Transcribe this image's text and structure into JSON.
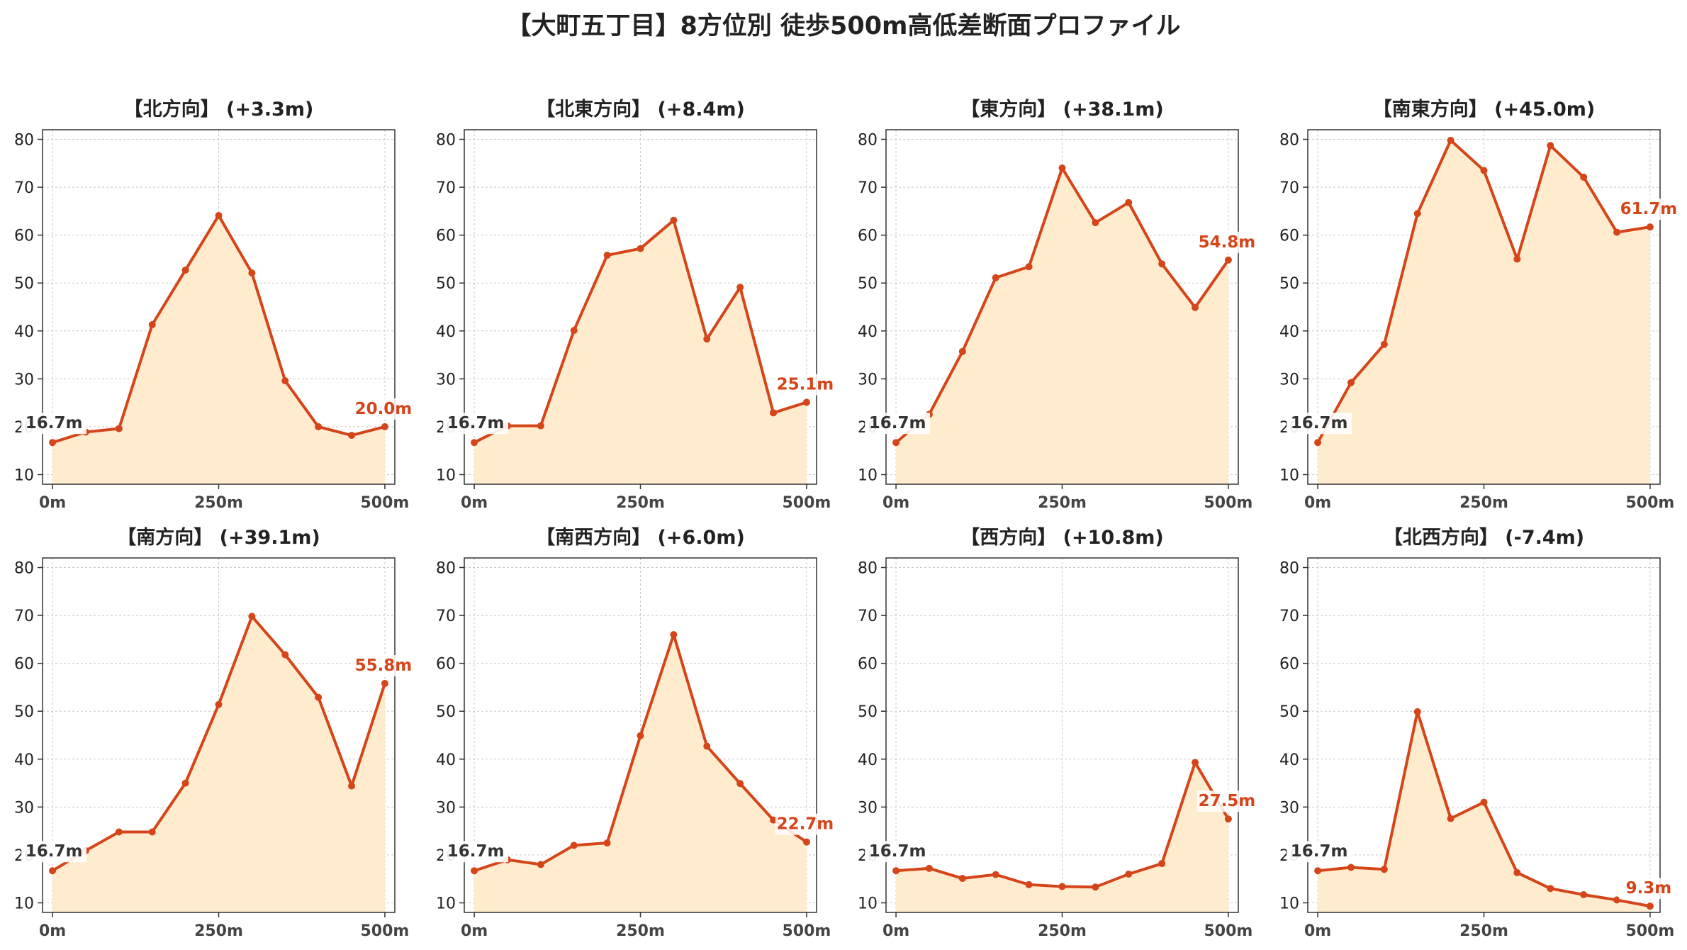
{
  "suptitle": "【大町五丁目】8方位別 徒歩500m高低差断面プロファイル",
  "colors": {
    "line": "#d4451a",
    "fill": "#ffebcd",
    "grid": "#c8c8c8",
    "axis": "#333333",
    "start_label": "#333333",
    "end_label": "#d4451a"
  },
  "chart_data": [
    {
      "type": "area",
      "title": "【北方向】 (+3.3m)",
      "x": [
        0,
        50,
        100,
        150,
        200,
        250,
        300,
        350,
        400,
        450,
        500
      ],
      "y": [
        16.7,
        18.9,
        19.6,
        41.3,
        52.7,
        64.1,
        52.1,
        29.6,
        20.0,
        18.2,
        20.0
      ],
      "xticks": [
        "0m",
        "250m",
        "500m"
      ],
      "yticks": [
        10,
        20,
        30,
        40,
        50,
        60,
        70,
        80
      ],
      "ylim": [
        8,
        82
      ],
      "xlim": [
        -15,
        515
      ],
      "grid": true,
      "start_label": "16.7m",
      "end_label": "20.0m"
    },
    {
      "type": "area",
      "title": "【北東方向】 (+8.4m)",
      "x": [
        0,
        50,
        100,
        150,
        200,
        250,
        300,
        350,
        400,
        450,
        500
      ],
      "y": [
        16.7,
        20.2,
        20.2,
        40.1,
        55.8,
        57.2,
        63.1,
        38.3,
        49.1,
        22.9,
        25.1
      ],
      "xticks": [
        "0m",
        "250m",
        "500m"
      ],
      "yticks": [
        10,
        20,
        30,
        40,
        50,
        60,
        70,
        80
      ],
      "ylim": [
        8,
        82
      ],
      "xlim": [
        -15,
        515
      ],
      "grid": true,
      "start_label": "16.7m",
      "end_label": "25.1m"
    },
    {
      "type": "area",
      "title": "【東方向】 (+38.1m)",
      "x": [
        0,
        50,
        100,
        150,
        200,
        250,
        300,
        350,
        400,
        450,
        500
      ],
      "y": [
        16.7,
        22.6,
        35.7,
        51.1,
        53.4,
        74.0,
        62.6,
        66.8,
        54.0,
        44.9,
        54.8
      ],
      "xticks": [
        "0m",
        "250m",
        "500m"
      ],
      "yticks": [
        10,
        20,
        30,
        40,
        50,
        60,
        70,
        80
      ],
      "ylim": [
        8,
        82
      ],
      "xlim": [
        -15,
        515
      ],
      "grid": true,
      "start_label": "16.7m",
      "end_label": "54.8m"
    },
    {
      "type": "area",
      "title": "【南東方向】 (+45.0m)",
      "x": [
        0,
        50,
        100,
        150,
        200,
        250,
        300,
        350,
        400,
        450,
        500
      ],
      "y": [
        16.7,
        29.2,
        37.2,
        64.5,
        79.8,
        73.5,
        55.0,
        78.7,
        72.1,
        60.6,
        61.7
      ],
      "xticks": [
        "0m",
        "250m",
        "500m"
      ],
      "yticks": [
        10,
        20,
        30,
        40,
        50,
        60,
        70,
        80
      ],
      "ylim": [
        8,
        82
      ],
      "xlim": [
        -15,
        515
      ],
      "grid": true,
      "start_label": "16.7m",
      "end_label": "61.7m"
    },
    {
      "type": "area",
      "title": "【南方向】 (+39.1m)",
      "x": [
        0,
        50,
        100,
        150,
        200,
        250,
        300,
        350,
        400,
        450,
        500
      ],
      "y": [
        16.7,
        20.9,
        24.8,
        24.8,
        35.0,
        51.4,
        69.8,
        61.8,
        52.9,
        34.4,
        55.8
      ],
      "xticks": [
        "0m",
        "250m",
        "500m"
      ],
      "yticks": [
        10,
        20,
        30,
        40,
        50,
        60,
        70,
        80
      ],
      "ylim": [
        8,
        82
      ],
      "xlim": [
        -15,
        515
      ],
      "grid": true,
      "start_label": "16.7m",
      "end_label": "55.8m"
    },
    {
      "type": "area",
      "title": "【南西方向】 (+6.0m)",
      "x": [
        0,
        50,
        100,
        150,
        200,
        250,
        300,
        350,
        400,
        450,
        500
      ],
      "y": [
        16.7,
        19.0,
        18.0,
        22.0,
        22.5,
        44.9,
        66.0,
        42.7,
        34.9,
        27.3,
        22.7
      ],
      "xticks": [
        "0m",
        "250m",
        "500m"
      ],
      "yticks": [
        10,
        20,
        30,
        40,
        50,
        60,
        70,
        80
      ],
      "ylim": [
        8,
        82
      ],
      "xlim": [
        -15,
        515
      ],
      "grid": true,
      "start_label": "16.7m",
      "end_label": "22.7m"
    },
    {
      "type": "area",
      "title": "【西方向】 (+10.8m)",
      "x": [
        0,
        50,
        100,
        150,
        200,
        250,
        300,
        350,
        400,
        450,
        500
      ],
      "y": [
        16.7,
        17.2,
        15.1,
        15.9,
        13.8,
        13.4,
        13.3,
        16.0,
        18.2,
        39.3,
        27.5
      ],
      "xticks": [
        "0m",
        "250m",
        "500m"
      ],
      "yticks": [
        10,
        20,
        30,
        40,
        50,
        60,
        70,
        80
      ],
      "ylim": [
        8,
        82
      ],
      "xlim": [
        -15,
        515
      ],
      "grid": true,
      "start_label": "16.7m",
      "end_label": "27.5m"
    },
    {
      "type": "area",
      "title": "【北西方向】 (-7.4m)",
      "x": [
        0,
        50,
        100,
        150,
        200,
        250,
        300,
        350,
        400,
        450,
        500
      ],
      "y": [
        16.7,
        17.4,
        17.0,
        49.9,
        27.6,
        31.0,
        16.3,
        13.0,
        11.7,
        10.6,
        9.3
      ],
      "xticks": [
        "0m",
        "250m",
        "500m"
      ],
      "yticks": [
        10,
        20,
        30,
        40,
        50,
        60,
        70,
        80
      ],
      "ylim": [
        8,
        82
      ],
      "xlim": [
        -15,
        515
      ],
      "grid": true,
      "start_label": "16.7m",
      "end_label": "9.3m"
    }
  ]
}
